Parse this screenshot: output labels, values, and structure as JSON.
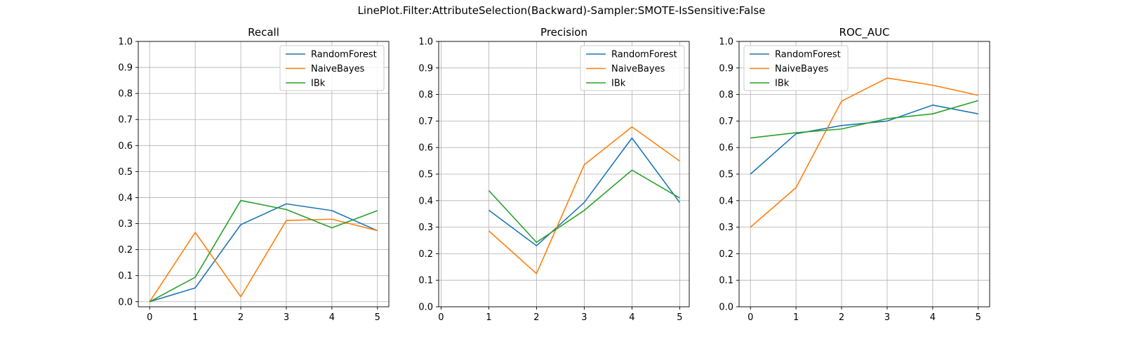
{
  "suptitle": "LinePlot.Filter:AttributeSelection(Backward)-Sampler:SMOTE-IsSensitive:False",
  "chart_data": [
    {
      "type": "line",
      "title": "Recall",
      "xlim": [
        -0.25,
        5.25
      ],
      "ylim": [
        -0.0195,
        1.0
      ],
      "xticks": [
        0,
        1,
        2,
        3,
        4,
        5
      ],
      "yticks": [
        0.0,
        0.1,
        0.2,
        0.3,
        0.4,
        0.5,
        0.6,
        0.7,
        0.8,
        0.9,
        1.0
      ],
      "grid": true,
      "legend": "upper-right",
      "series": [
        {
          "name": "RandomForest",
          "color": "#1f77b4",
          "x": [
            0,
            1,
            2,
            3,
            4,
            5
          ],
          "y": [
            0.0,
            0.053,
            0.296,
            0.376,
            0.35,
            0.273
          ]
        },
        {
          "name": "NaiveBayes",
          "color": "#ff7f0e",
          "x": [
            0,
            1,
            2,
            3,
            4,
            5
          ],
          "y": [
            0.0,
            0.266,
            0.019,
            0.312,
            0.317,
            0.273
          ]
        },
        {
          "name": "IBk",
          "color": "#2ca02c",
          "x": [
            0,
            1,
            2,
            3,
            4,
            5
          ],
          "y": [
            0.0,
            0.094,
            0.389,
            0.354,
            0.284,
            0.35
          ]
        }
      ]
    },
    {
      "type": "line",
      "title": "Precision",
      "xlim": [
        -0.05,
        5.2
      ],
      "ylim": [
        0.0,
        1.0
      ],
      "xticks": [
        0,
        1,
        2,
        3,
        4,
        5
      ],
      "yticks": [
        0.0,
        0.1,
        0.2,
        0.3,
        0.4,
        0.5,
        0.6,
        0.7,
        0.8,
        0.9,
        1.0
      ],
      "grid": true,
      "legend": "upper-right",
      "series": [
        {
          "name": "RandomForest",
          "color": "#1f77b4",
          "x": [
            1,
            2,
            3,
            4,
            5
          ],
          "y": [
            0.364,
            0.23,
            0.393,
            0.636,
            0.393
          ]
        },
        {
          "name": "NaiveBayes",
          "color": "#ff7f0e",
          "x": [
            1,
            2,
            3,
            4,
            5
          ],
          "y": [
            0.286,
            0.125,
            0.535,
            0.678,
            0.549
          ]
        },
        {
          "name": "IBk",
          "color": "#2ca02c",
          "x": [
            1,
            2,
            3,
            4,
            5
          ],
          "y": [
            0.438,
            0.243,
            0.363,
            0.515,
            0.41
          ]
        }
      ]
    },
    {
      "type": "line",
      "title": "ROC_AUC",
      "xlim": [
        -0.25,
        5.25
      ],
      "ylim": [
        0.0,
        1.0
      ],
      "xticks": [
        0,
        1,
        2,
        3,
        4,
        5
      ],
      "yticks": [
        0.0,
        0.1,
        0.2,
        0.3,
        0.4,
        0.5,
        0.6,
        0.7,
        0.8,
        0.9,
        1.0
      ],
      "grid": true,
      "legend": "upper-left",
      "series": [
        {
          "name": "RandomForest",
          "color": "#1f77b4",
          "x": [
            0,
            1,
            2,
            3,
            4,
            5
          ],
          "y": [
            0.5,
            0.652,
            0.683,
            0.7,
            0.76,
            0.727
          ]
        },
        {
          "name": "NaiveBayes",
          "color": "#ff7f0e",
          "x": [
            0,
            1,
            2,
            3,
            4,
            5
          ],
          "y": [
            0.3,
            0.449,
            0.775,
            0.862,
            0.835,
            0.797
          ]
        },
        {
          "name": "IBk",
          "color": "#2ca02c",
          "x": [
            0,
            1,
            2,
            3,
            4,
            5
          ],
          "y": [
            0.636,
            0.656,
            0.67,
            0.709,
            0.727,
            0.777
          ]
        }
      ]
    }
  ]
}
